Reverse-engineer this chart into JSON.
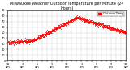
{
  "title": "Milwaukee Weather Outdoor Temperature per Minute (24 Hours)",
  "dot_color": "#ff0000",
  "background_color": "#ffffff",
  "legend_label": "Outdoor Temp",
  "legend_color": "#ff0000",
  "ylim": [
    0,
    90
  ],
  "xlim": [
    0,
    1440
  ],
  "y_ticks": [
    0,
    10,
    20,
    30,
    40,
    50,
    60,
    70,
    80,
    90
  ],
  "grid_color": "#888888",
  "dot_size": 0.3,
  "title_fontsize": 3.5,
  "tick_fontsize": 2.5,
  "legend_fontsize": 2.5
}
